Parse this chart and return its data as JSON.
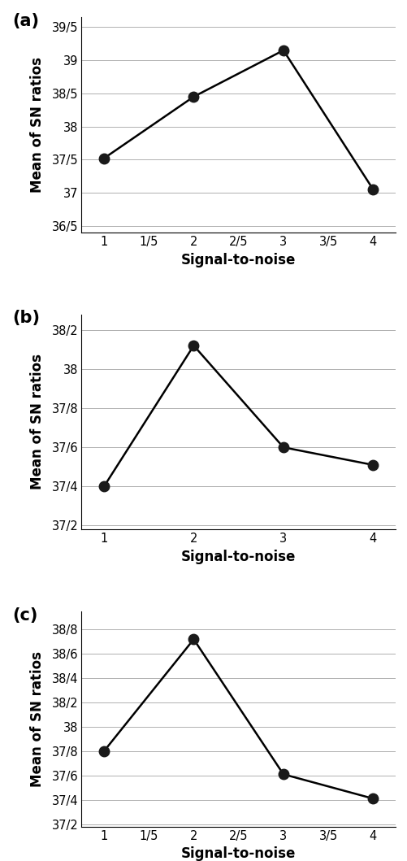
{
  "panels": [
    {
      "label": "(a)",
      "x_data": [
        1,
        2,
        3,
        4
      ],
      "y_data": [
        37.52,
        38.45,
        39.15,
        37.05
      ],
      "xlabel": "Signal-to-noise",
      "ylabel": "Mean of SN ratios",
      "xtick_positions": [
        1,
        1.5,
        2,
        2.5,
        3,
        3.5,
        4
      ],
      "xtick_labels": [
        "1",
        "1/5",
        "2",
        "2/5",
        "3",
        "3/5",
        "4"
      ],
      "ytick_positions": [
        36.5,
        37.0,
        37.5,
        38.0,
        38.5,
        39.0,
        39.5
      ],
      "ytick_labels": [
        "36/5",
        "37",
        "37/5",
        "38",
        "38/5",
        "39",
        "39/5"
      ],
      "ylim": [
        36.4,
        39.65
      ],
      "xlim": [
        0.75,
        4.25
      ]
    },
    {
      "label": "(b)",
      "x_data": [
        1,
        2,
        3,
        4
      ],
      "y_data": [
        37.4,
        38.12,
        37.6,
        37.51
      ],
      "xlabel": "Signal-to-noise",
      "ylabel": "Mean of SN ratios",
      "xtick_positions": [
        1,
        2,
        3,
        4
      ],
      "xtick_labels": [
        "1",
        "2",
        "3",
        "4"
      ],
      "ytick_positions": [
        37.2,
        37.4,
        37.6,
        37.8,
        38.0,
        38.2
      ],
      "ytick_labels": [
        "37/2",
        "37/4",
        "37/6",
        "37/8",
        "38",
        "38/2"
      ],
      "ylim": [
        37.18,
        38.28
      ],
      "xlim": [
        0.75,
        4.25
      ]
    },
    {
      "label": "(c)",
      "x_data": [
        1,
        2,
        3,
        4
      ],
      "y_data": [
        37.8,
        38.72,
        37.61,
        37.41
      ],
      "xlabel": "Signal-to-noise",
      "ylabel": "Mean of SN ratios",
      "xtick_positions": [
        1,
        1.5,
        2,
        2.5,
        3,
        3.5,
        4
      ],
      "xtick_labels": [
        "1",
        "1/5",
        "2",
        "2/5",
        "3",
        "3/5",
        "4"
      ],
      "ytick_positions": [
        37.2,
        37.4,
        37.6,
        37.8,
        38.0,
        38.2,
        38.4,
        38.6,
        38.8
      ],
      "ytick_labels": [
        "37/2",
        "37/4",
        "37/6",
        "37/8",
        "38",
        "38/2",
        "38/4",
        "38/6",
        "38/8"
      ],
      "ylim": [
        37.18,
        38.95
      ],
      "xlim": [
        0.75,
        4.25
      ]
    }
  ],
  "line_color": "#000000",
  "marker_color": "#1a1a1a",
  "marker_size": 9,
  "line_width": 1.8,
  "background_color": "#ffffff",
  "grid_color": "#b0b0b0",
  "label_fontsize": 12,
  "tick_fontsize": 10.5,
  "panel_label_fontsize": 15
}
